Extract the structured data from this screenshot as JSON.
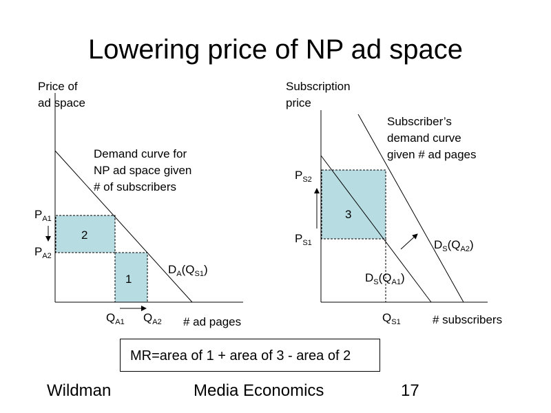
{
  "slide": {
    "title": "Lowering price of NP ad space",
    "formula": "MR=area of 1 + area of 3 - area of 2",
    "footer": {
      "author": "Wildman",
      "course": "Media Economics",
      "page": "17"
    }
  },
  "left_chart": {
    "ylabel_line1": "Price of",
    "ylabel_line2": "ad space",
    "xlabel": "# ad pages",
    "demand_label_lines": [
      "Demand curve for",
      "NP ad space given",
      "# of subscribers"
    ],
    "curve_label": {
      "base": "D",
      "sub1": "A",
      "paren": "(Q",
      "sub2": "S1",
      "close": ")"
    },
    "price_ticks": [
      {
        "base": "P",
        "sub": "A1"
      },
      {
        "base": "P",
        "sub": "A2"
      }
    ],
    "qty_ticks": [
      {
        "base": "Q",
        "sub": "A1"
      },
      {
        "base": "Q",
        "sub": "A2"
      }
    ],
    "area_labels": [
      "2",
      "1"
    ]
  },
  "right_chart": {
    "ylabel_line1": "Subscription",
    "ylabel_line2": "price",
    "xlabel": "# subscribers",
    "demand_label_lines": [
      "Subscriber’s",
      "demand curve",
      "given # ad pages"
    ],
    "curve1_label": {
      "base": "D",
      "sub1": "S",
      "paren": "(Q",
      "sub2": "A1",
      "close": ")"
    },
    "curve2_label": {
      "base": "D",
      "sub1": "S",
      "paren": "(Q",
      "sub2": "A2",
      "close": ")"
    },
    "price_ticks": [
      {
        "base": "P",
        "sub": "S2"
      },
      {
        "base": "P",
        "sub": "S1"
      }
    ],
    "qty_tick": {
      "base": "Q",
      "sub": "S1"
    },
    "area_label": "3"
  },
  "colors": {
    "area_fill": "#b7dde3",
    "line": "#000000"
  }
}
